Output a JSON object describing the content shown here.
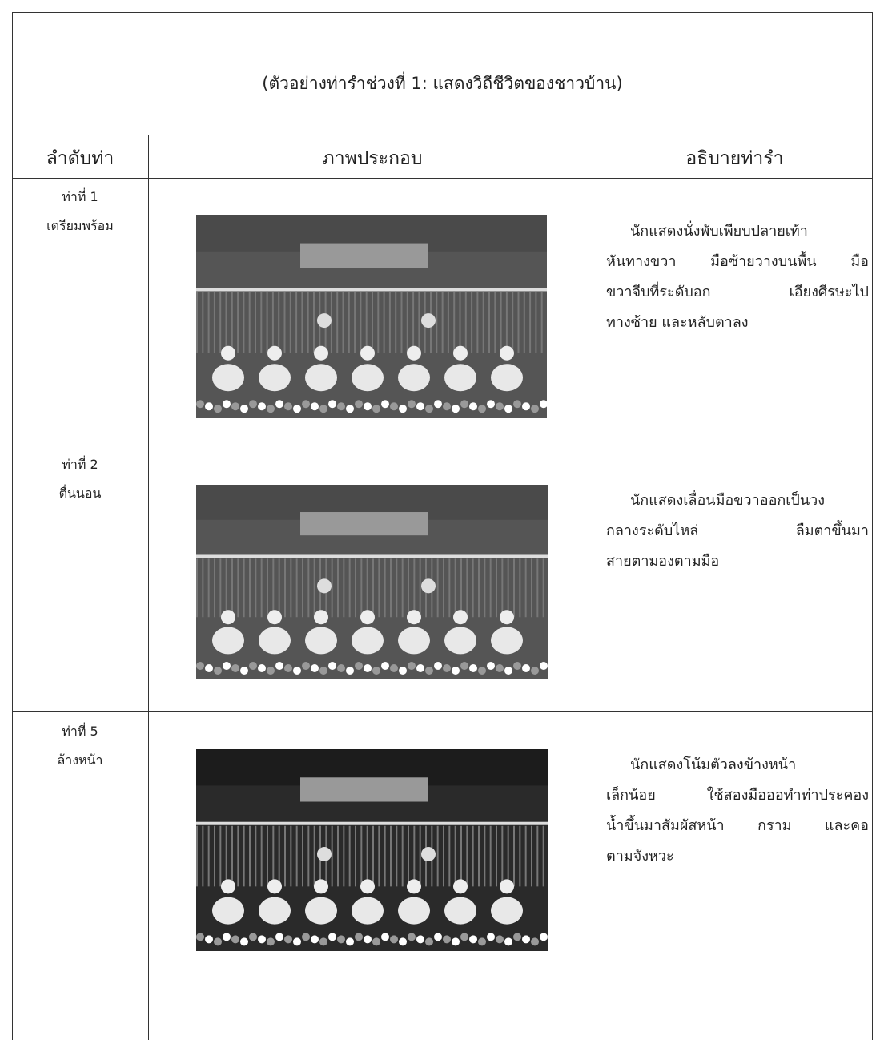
{
  "caption": "(ตัวอย่างท่ารำช่วงที่ 1:  แสดงวิถีชีวิตของชาวบ้าน)",
  "table": {
    "headers": [
      "ลำดับท่า",
      "ภาพประกอบ",
      "อธิบายท่ารำ"
    ],
    "rows": [
      {
        "pose": "ท่าที่ 1",
        "name": "เตรียมพร้อม",
        "description": [
          "นักแสดงนั่งพับเพียบปลายเท้า",
          "หันทางขวา มือซ้ายวางบนพื้น มือ",
          "ขวาจีบที่ระดับอก เอียงศีรษะไป",
          "ทางซ้าย และหลับตาลง"
        ]
      },
      {
        "pose": "ท่าที่ 2",
        "name": "ตื่นนอน",
        "description": [
          "นักแสดงเลื่อนมือขวาออกเป็นวง",
          "กลางระดับไหล่ ลืมตาขึ้นมา",
          "สายตามองตามมือ"
        ]
      },
      {
        "pose": "ท่าที่ 5",
        "name": "ล้างหน้า",
        "description": [
          "นักแสดงโน้มตัวลงข้างหน้า",
          "เล็กน้อย ใช้สองมือออทำท่าประคอง",
          "น้ำขึ้นมาสัมผัสหน้า กราม และคอ",
          "ตามจังหวะ"
        ]
      }
    ]
  }
}
